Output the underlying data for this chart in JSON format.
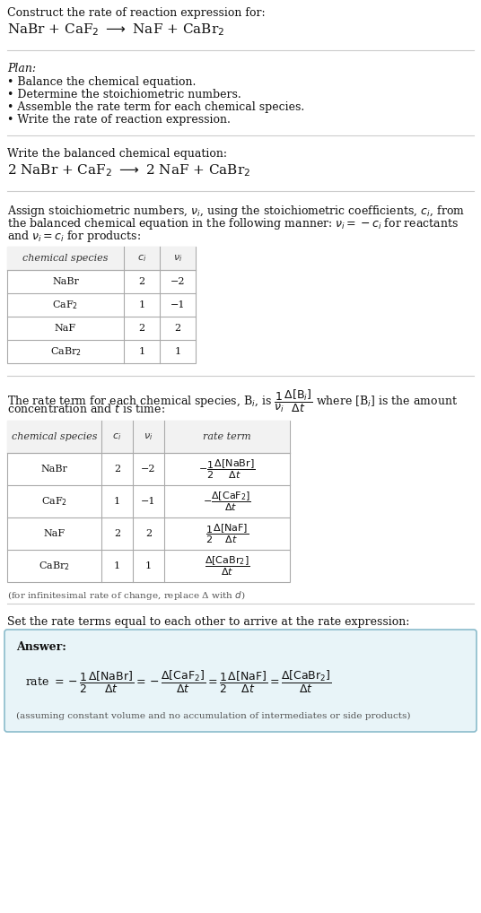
{
  "bg_color": "#ffffff",
  "title_text": "Construct the rate of reaction expression for:",
  "reaction_unbalanced": "NaBr + CaF$_2$ $\\longrightarrow$ NaF + CaBr$_2$",
  "plan_header": "Plan:",
  "plan_items": [
    "• Balance the chemical equation.",
    "• Determine the stoichiometric numbers.",
    "• Assemble the rate term for each chemical species.",
    "• Write the rate of reaction expression."
  ],
  "balanced_header": "Write the balanced chemical equation:",
  "reaction_balanced": "2 NaBr + CaF$_2$ $\\longrightarrow$ 2 NaF + CaBr$_2$",
  "stoich_header_lines": [
    "Assign stoichiometric numbers, $\\nu_i$, using the stoichiometric coefficients, $c_i$, from",
    "the balanced chemical equation in the following manner: $\\nu_i = -c_i$ for reactants",
    "and $\\nu_i = c_i$ for products:"
  ],
  "table1_headers": [
    "chemical species",
    "$c_i$",
    "$\\nu_i$"
  ],
  "table1_data": [
    [
      "NaBr",
      "2",
      "−2"
    ],
    [
      "CaF$_2$",
      "1",
      "−1"
    ],
    [
      "NaF",
      "2",
      "2"
    ],
    [
      "CaBr$_2$",
      "1",
      "1"
    ]
  ],
  "rate_term_header_lines": [
    "The rate term for each chemical species, B$_i$, is $\\dfrac{1}{\\nu_i}\\dfrac{\\Delta[\\mathrm{B}_i]}{\\Delta t}$ where [B$_i$] is the amount",
    "concentration and $t$ is time:"
  ],
  "table2_headers": [
    "chemical species",
    "$c_i$",
    "$\\nu_i$",
    "rate term"
  ],
  "table2_data": [
    [
      "NaBr",
      "2",
      "−2",
      "$-\\dfrac{1}{2}\\dfrac{\\Delta[\\mathrm{NaBr}]}{\\Delta t}$"
    ],
    [
      "CaF$_2$",
      "1",
      "−1",
      "$-\\dfrac{\\Delta[\\mathrm{CaF}_2]}{\\Delta t}$"
    ],
    [
      "NaF",
      "2",
      "2",
      "$\\dfrac{1}{2}\\dfrac{\\Delta[\\mathrm{NaF}]}{\\Delta t}$"
    ],
    [
      "CaBr$_2$",
      "1",
      "1",
      "$\\dfrac{\\Delta[\\mathrm{CaBr}_2]}{\\Delta t}$"
    ]
  ],
  "infinitesimal_note": "(for infinitesimal rate of change, replace Δ with $d$)",
  "set_rate_text": "Set the rate terms equal to each other to arrive at the rate expression:",
  "answer_label": "Answer:",
  "answer_box_color": "#e8f4f8",
  "answer_box_border": "#8bbccc",
  "rate_expression": "rate $= -\\dfrac{1}{2}\\dfrac{\\Delta[\\mathrm{NaBr}]}{\\Delta t} = -\\dfrac{\\Delta[\\mathrm{CaF}_2]}{\\Delta t} = \\dfrac{1}{2}\\dfrac{\\Delta[\\mathrm{NaF}]}{\\Delta t} = \\dfrac{\\Delta[\\mathrm{CaBr}_2]}{\\Delta t}$",
  "assumption_note": "(assuming constant volume and no accumulation of intermediates or side products)"
}
